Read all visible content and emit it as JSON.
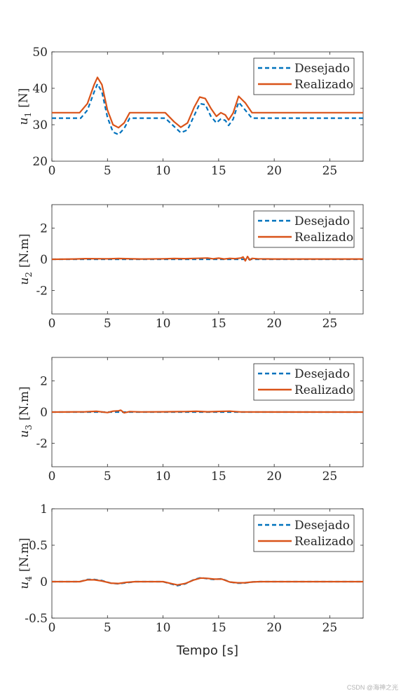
{
  "xlabel": "Tempo [s]",
  "watermark": "CSDN @海神之光",
  "colors": {
    "desired": "#0072BD",
    "actual": "#D95319",
    "axes": "#262626"
  },
  "legend_labels": [
    "Desejado",
    "Realizado"
  ],
  "chart_data": [
    {
      "type": "line",
      "ylabel_var": "u",
      "ylabel_sub": "1",
      "ylabel_unit": "[N]",
      "xlim": [
        0,
        28
      ],
      "ylim": [
        20,
        50
      ],
      "xticks": [
        0,
        5,
        10,
        15,
        20,
        25
      ],
      "yticks": [
        20,
        30,
        40,
        50
      ],
      "legend": "top-right",
      "grid": false,
      "series": [
        {
          "name": "Desejado",
          "style": "dashed",
          "x": [
            0,
            2.6,
            3.2,
            3.8,
            4.1,
            4.5,
            5.0,
            5.5,
            6.0,
            6.5,
            7.0,
            10.2,
            11.0,
            11.6,
            12.2,
            12.8,
            13.3,
            13.8,
            14.3,
            14.8,
            15.2,
            15.6,
            15.9,
            16.3,
            16.8,
            17.4,
            18.0,
            28
          ],
          "y": [
            31.8,
            31.8,
            34,
            39,
            41.2,
            39,
            32,
            28,
            27.3,
            29,
            31.8,
            31.8,
            29.5,
            27.8,
            28.6,
            32.5,
            35.8,
            35.5,
            32.3,
            30.5,
            31.6,
            31.2,
            29.8,
            31.5,
            36.2,
            34,
            31.8,
            31.8
          ]
        },
        {
          "name": "Realizado",
          "style": "solid",
          "x": [
            0,
            2.5,
            3.2,
            3.8,
            4.1,
            4.5,
            5.0,
            5.5,
            6.0,
            6.5,
            7.0,
            10.2,
            11.0,
            11.6,
            12.2,
            12.8,
            13.3,
            13.8,
            14.3,
            14.8,
            15.2,
            15.6,
            15.9,
            16.3,
            16.8,
            17.4,
            18.0,
            28
          ],
          "y": [
            33.3,
            33.3,
            35.8,
            41,
            43,
            41,
            34,
            30,
            29.2,
            30.5,
            33.3,
            33.3,
            30.8,
            29.3,
            30.5,
            34.8,
            37.6,
            37.2,
            34.5,
            32.3,
            33.3,
            32.7,
            31.3,
            33.2,
            37.8,
            36,
            33.3,
            33.3
          ]
        }
      ]
    },
    {
      "type": "line",
      "ylabel_var": "u",
      "ylabel_sub": "2",
      "ylabel_unit": "[N.m]",
      "xlim": [
        0,
        28
      ],
      "ylim": [
        -3.5,
        3.5
      ],
      "xticks": [
        0,
        5,
        10,
        15,
        20,
        25
      ],
      "yticks": [
        -2,
        0,
        2
      ],
      "legend": "top-right",
      "grid": false,
      "series": [
        {
          "name": "Desejado",
          "style": "dashed",
          "x": [
            0,
            28
          ],
          "y": [
            0,
            0
          ]
        },
        {
          "name": "Realizado",
          "style": "solid",
          "x": [
            0,
            2,
            3,
            5,
            6,
            8,
            10,
            11,
            12,
            13,
            14,
            14.5,
            15,
            15.5,
            16,
            16.5,
            17,
            17.2,
            17.4,
            17.6,
            17.8,
            18,
            18.5,
            20,
            28
          ],
          "y": [
            0,
            0.02,
            0.04,
            0.03,
            0.05,
            0.02,
            0.03,
            0.05,
            0.04,
            0.06,
            0.08,
            0.03,
            0.07,
            0.02,
            0.06,
            0.04,
            0.08,
            0.15,
            -0.1,
            0.18,
            -0.05,
            0.06,
            0.03,
            0.02,
            0.02
          ]
        }
      ]
    },
    {
      "type": "line",
      "ylabel_var": "u",
      "ylabel_sub": "3",
      "ylabel_unit": "[N.m]",
      "xlim": [
        0,
        28
      ],
      "ylim": [
        -3.5,
        3.5
      ],
      "xticks": [
        0,
        5,
        10,
        15,
        20,
        25
      ],
      "yticks": [
        -2,
        0,
        2
      ],
      "legend": "top-right",
      "grid": false,
      "series": [
        {
          "name": "Desejado",
          "style": "dashed",
          "x": [
            0,
            28
          ],
          "y": [
            0,
            0
          ]
        },
        {
          "name": "Realizado",
          "style": "solid",
          "x": [
            0,
            3,
            4,
            5,
            5.5,
            6,
            6.2,
            6.5,
            7,
            8,
            10,
            12,
            13,
            14,
            15,
            16,
            16.5,
            17,
            28
          ],
          "y": [
            0,
            0.02,
            0.05,
            -0.03,
            0.06,
            0.08,
            0.12,
            -0.05,
            0.03,
            0.01,
            0.02,
            0.03,
            0.05,
            0.02,
            0.04,
            0.06,
            0.03,
            0.01,
            0
          ]
        }
      ]
    },
    {
      "type": "line",
      "ylabel_var": "u",
      "ylabel_sub": "4",
      "ylabel_unit": "[N.m]",
      "xlim": [
        0,
        28
      ],
      "ylim": [
        -0.5,
        1
      ],
      "xticks": [
        0,
        5,
        10,
        15,
        20,
        25
      ],
      "yticks": [
        -0.5,
        0,
        0.5,
        1
      ],
      "yticklabels": [
        "-0.5",
        "0",
        "0.5",
        "1"
      ],
      "legend": "top-right",
      "grid": false,
      "series": [
        {
          "name": "Desejado",
          "style": "dashed",
          "x": [
            0,
            2.5,
            3.2,
            3.8,
            4.5,
            5.3,
            6,
            6.7,
            7.5,
            10,
            10.7,
            11.3,
            12,
            12.8,
            13.4,
            14,
            14.6,
            15.3,
            16,
            16.7,
            17.3,
            18,
            18.7,
            28
          ],
          "y": [
            0,
            0,
            0.03,
            0.03,
            0.015,
            -0.02,
            -0.03,
            -0.015,
            0,
            0,
            -0.03,
            -0.055,
            -0.03,
            0.03,
            0.055,
            0.04,
            0.03,
            0.04,
            -0.005,
            -0.02,
            -0.02,
            -0.005,
            0,
            0
          ]
        },
        {
          "name": "Realizado",
          "style": "solid",
          "x": [
            0,
            2.5,
            3.2,
            3.8,
            4.5,
            5.3,
            6,
            6.7,
            7.5,
            10,
            10.7,
            11.3,
            12,
            12.8,
            13.4,
            14,
            14.6,
            15.3,
            16,
            16.7,
            17.3,
            18,
            18.7,
            28
          ],
          "y": [
            0,
            0,
            0.025,
            0.025,
            0.01,
            -0.02,
            -0.025,
            -0.01,
            0,
            0,
            -0.025,
            -0.045,
            -0.025,
            0.025,
            0.05,
            0.045,
            0.035,
            0.035,
            -0.005,
            -0.015,
            -0.015,
            -0.005,
            0,
            0
          ]
        }
      ]
    }
  ]
}
